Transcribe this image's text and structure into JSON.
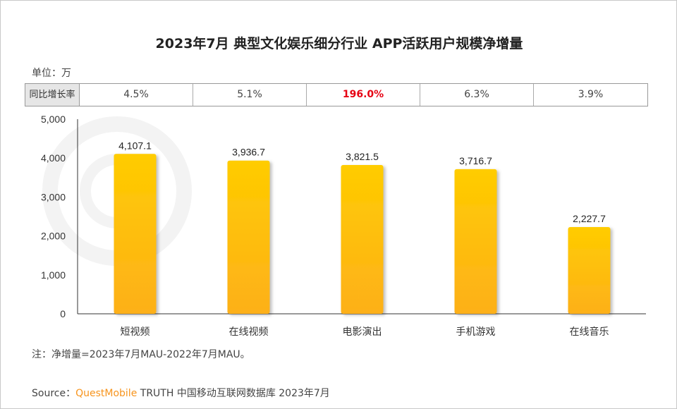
{
  "chart_data": {
    "type": "bar",
    "title": "2023年7月 典型文化娱乐细分行业 APP活跃用户规模净增量",
    "unit_label": "单位：万",
    "categories": [
      "短视频",
      "在线视频",
      "电影演出",
      "手机游戏",
      "在线音乐"
    ],
    "values": [
      4107.1,
      3936.7,
      3821.5,
      3716.7,
      2227.7
    ],
    "value_labels": [
      "4,107.1",
      "3,936.7",
      "3,821.5",
      "3,716.7",
      "2,227.7"
    ],
    "ylim": [
      0,
      5000
    ],
    "yticks": [
      0,
      1000,
      2000,
      3000,
      4000,
      5000
    ],
    "ytick_labels": [
      "0",
      "1,000",
      "2,000",
      "3,000",
      "4,000",
      "5,000"
    ],
    "grid": false,
    "growth_table": {
      "header": "同比增长率",
      "values": [
        "4.5%",
        "5.1%",
        "196.0%",
        "6.3%",
        "3.9%"
      ],
      "highlight_index": 2
    },
    "colors": {
      "bar_top": "#FFCC00",
      "bar_bottom": "#FDB01A",
      "highlight": "#E60012"
    }
  },
  "note": "注：净增量=2023年7月MAU-2022年7月MAU。",
  "source": {
    "prefix": "Source：",
    "brand": "QuestMobile",
    "text": " TRUTH 中国移动互联网数据库 2023年7月"
  },
  "watermark": "QUESTMOBILE"
}
